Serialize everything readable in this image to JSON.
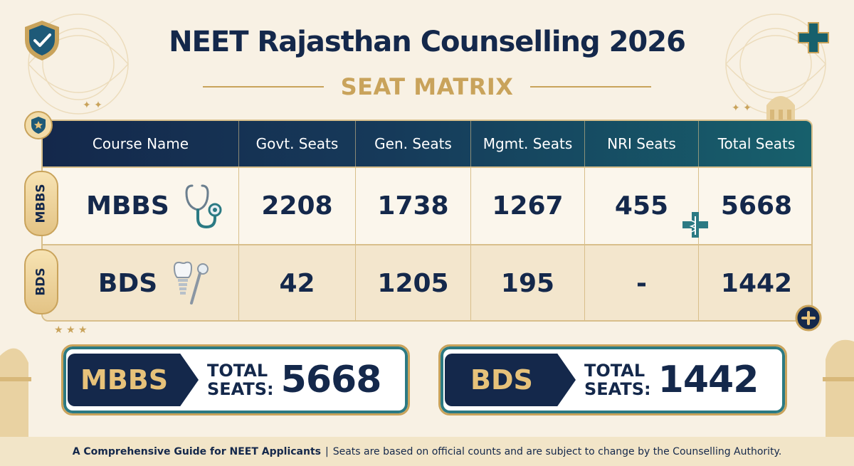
{
  "header": {
    "title": "NEET Rajasthan Counselling 2026",
    "subtitle": "SEAT MATRIX"
  },
  "table": {
    "columns": [
      "Course Name",
      "Govt. Seats",
      "Gen. Seats",
      "Mgmt. Seats",
      "NRI Seats",
      "Total Seats"
    ],
    "rows": [
      {
        "tab": "MBBS",
        "course": "MBBS",
        "icon": "stethoscope-icon",
        "govt": "2208",
        "gen": "1738",
        "mgmt": "1267",
        "nri": "455",
        "total": "5668"
      },
      {
        "tab": "BDS",
        "course": "BDS",
        "icon": "tooth-implant-icon",
        "govt": "42",
        "gen": "1205",
        "mgmt": "195",
        "nri": "-",
        "total": "1442"
      }
    ]
  },
  "summary": [
    {
      "course": "MBBS",
      "total_label_line1": "TOTAL",
      "total_label_line2": "SEATS:",
      "total": "5668"
    },
    {
      "course": "BDS",
      "total_label_line1": "TOTAL",
      "total_label_line2": "SEATS:",
      "total": "1442"
    }
  ],
  "footer": {
    "bold_text": "A Comprehensive Guide for NEET Applicants",
    "separator": "|",
    "text": "Seats are based on official counts and are subject to change by the Counselling Authority."
  },
  "colors": {
    "navy": "#14284b",
    "teal": "#17606c",
    "gold": "#c9a35b",
    "cream": "#f8f1e4"
  }
}
